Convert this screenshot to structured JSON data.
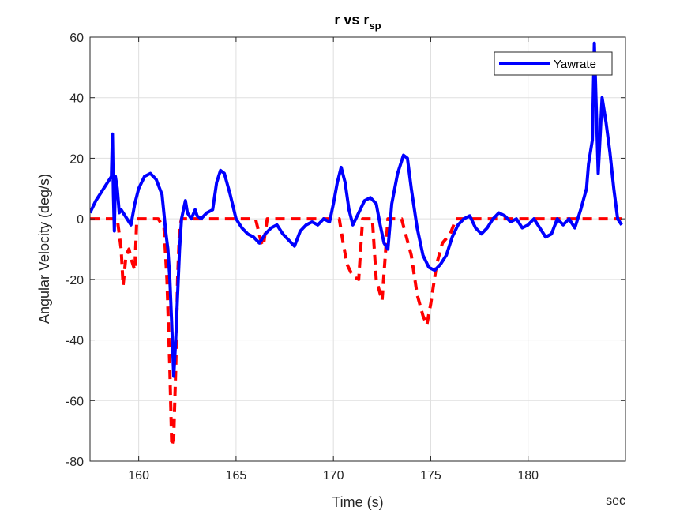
{
  "chart_data": {
    "type": "line",
    "title": "r vs r",
    "title_subscript": "sp",
    "xlabel": "Time (s)",
    "ylabel": "Angular Velocity (deg/s)",
    "x_unit_note": "sec",
    "xlim": [
      157.5,
      185
    ],
    "ylim": [
      -80,
      60
    ],
    "x_ticks": [
      160,
      165,
      170,
      175,
      180
    ],
    "y_ticks": [
      60,
      40,
      20,
      0,
      -20,
      -40,
      -60,
      -80
    ],
    "grid": true,
    "legend": {
      "placement": "top-right",
      "entries": [
        "Yawrate"
      ]
    },
    "series": [
      {
        "name": "Yawrate",
        "color": "#0000ff",
        "style": "solid",
        "x": [
          157.5,
          157.8,
          158.1,
          158.4,
          158.6,
          158.65,
          158.7,
          158.75,
          158.8,
          158.9,
          159.0,
          159.1,
          159.2,
          159.4,
          159.6,
          159.8,
          160.0,
          160.3,
          160.6,
          160.9,
          161.2,
          161.4,
          161.5,
          161.6,
          161.7,
          161.8,
          161.9,
          162.0,
          162.1,
          162.2,
          162.3,
          162.4,
          162.5,
          162.7,
          162.9,
          163.0,
          163.2,
          163.5,
          163.8,
          164.0,
          164.2,
          164.4,
          164.7,
          165.0,
          165.3,
          165.6,
          165.9,
          166.2,
          166.5,
          166.8,
          167.1,
          167.4,
          167.7,
          168.0,
          168.3,
          168.6,
          168.9,
          169.2,
          169.5,
          169.8,
          170.0,
          170.2,
          170.4,
          170.6,
          170.8,
          171.0,
          171.3,
          171.6,
          171.9,
          172.2,
          172.4,
          172.6,
          172.8,
          173.0,
          173.3,
          173.6,
          173.8,
          174.0,
          174.3,
          174.6,
          174.9,
          175.2,
          175.5,
          175.8,
          176.1,
          176.4,
          176.7,
          177.0,
          177.3,
          177.6,
          177.9,
          178.2,
          178.5,
          178.8,
          179.1,
          179.4,
          179.7,
          180.0,
          180.3,
          180.6,
          180.9,
          181.2,
          181.5,
          181.8,
          182.1,
          182.4,
          182.7,
          183.0,
          183.1,
          183.2,
          183.3,
          183.4,
          183.6,
          183.8,
          184.0,
          184.2,
          184.4,
          184.6,
          184.8
        ],
        "y": [
          2,
          6,
          9,
          12,
          14,
          28,
          8,
          -4,
          14,
          10,
          2,
          3,
          2,
          0,
          -2,
          5,
          10,
          14,
          15,
          13,
          8,
          -5,
          -10,
          -20,
          -35,
          -52,
          -40,
          -25,
          -10,
          0,
          3,
          6,
          2,
          0,
          3,
          1,
          0,
          2,
          3,
          12,
          16,
          15,
          8,
          0,
          -3,
          -5,
          -6,
          -8,
          -5,
          -3,
          -2,
          -5,
          -7,
          -9,
          -4,
          -2,
          -1,
          -2,
          0,
          -1,
          5,
          12,
          17,
          12,
          3,
          -2,
          2,
          6,
          7,
          5,
          -2,
          -8,
          -10,
          5,
          15,
          21,
          20,
          10,
          -3,
          -12,
          -16,
          -17,
          -15,
          -12,
          -6,
          -2,
          0,
          1,
          -3,
          -5,
          -3,
          0,
          2,
          1,
          -1,
          0,
          -3,
          -2,
          0,
          -3,
          -6,
          -5,
          0,
          -2,
          0,
          -3,
          3,
          10,
          18,
          22,
          26,
          58,
          15,
          40,
          32,
          22,
          10,
          0,
          -2
        ]
      },
      {
        "name": "",
        "color": "#ff0000",
        "style": "dashed",
        "x": [
          157.5,
          158.5,
          158.9,
          159.1,
          159.2,
          159.35,
          159.5,
          159.65,
          159.8,
          159.9,
          160.2,
          161.0,
          161.3,
          161.45,
          161.6,
          161.7,
          161.8,
          161.9,
          162.0,
          162.1,
          162.2,
          162.5,
          163.0,
          163.5,
          164.0,
          166.0,
          166.3,
          166.4,
          166.6,
          167.0,
          169.0,
          170.0,
          170.3,
          170.5,
          170.7,
          171.0,
          171.3,
          171.5,
          171.8,
          172.0,
          172.2,
          172.5,
          172.8,
          173.0,
          173.5,
          174.0,
          174.3,
          174.6,
          174.8,
          175.0,
          175.3,
          175.6,
          176.0,
          176.3,
          177.0,
          184.8
        ],
        "y": [
          0,
          0,
          0,
          -10,
          -22,
          -12,
          -10,
          -14,
          -17,
          0,
          0,
          0,
          -3,
          -20,
          -50,
          -75,
          -72,
          -50,
          -20,
          -3,
          0,
          0,
          0,
          0,
          0,
          0,
          -8,
          -9,
          0,
          0,
          0,
          0,
          0,
          -8,
          -15,
          -19,
          -20,
          0,
          0,
          0,
          -20,
          -27,
          0,
          0,
          0,
          -12,
          -25,
          -32,
          -35,
          -28,
          -15,
          -8,
          -5,
          0,
          0,
          0
        ]
      }
    ]
  }
}
